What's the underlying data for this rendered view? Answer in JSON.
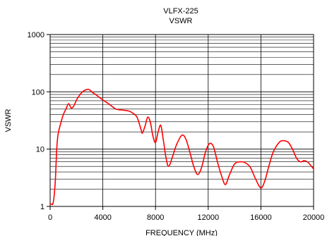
{
  "chart_data": {
    "type": "line",
    "title": "VLFX-225",
    "subtitle": "VSWR",
    "xlabel": "FREQUENCY (MHz)",
    "ylabel": "VSWR",
    "xlim": [
      0,
      20000
    ],
    "ylim": [
      1,
      1000
    ],
    "yscale": "log",
    "xticks": [
      0,
      4000,
      8000,
      12000,
      16000,
      20000
    ],
    "xtick_labels": [
      "0",
      "4000",
      "8000",
      "12000",
      "16000",
      "20000"
    ],
    "yticks": [
      1,
      10,
      100,
      1000
    ],
    "ytick_labels": [
      "1",
      "10",
      "100",
      "1000"
    ],
    "grid": true,
    "legend": "none",
    "series": [
      {
        "color": "#ff0000",
        "x": [
          0,
          100,
          200,
          300,
          400,
          500,
          600,
          800,
          1000,
          1200,
          1400,
          1600,
          1800,
          2000,
          2200,
          2500,
          2800,
          3000,
          3200,
          3500,
          3800,
          4000,
          4300,
          4600,
          5000,
          5500,
          6000,
          6300,
          6600,
          6900,
          7000,
          7200,
          7400,
          7600,
          7800,
          8000,
          8200,
          8400,
          8600,
          8800,
          9000,
          9300,
          9600,
          10000,
          10300,
          10600,
          10900,
          11200,
          11500,
          11800,
          12100,
          12400,
          12700,
          13000,
          13300,
          13600,
          14000,
          14400,
          14800,
          15200,
          15600,
          16000,
          16300,
          16600,
          16900,
          17200,
          17500,
          17800,
          18100,
          18400,
          18700,
          19000,
          19300,
          19600,
          20000
        ],
        "y": [
          1.1,
          1.1,
          1.1,
          1.5,
          3,
          10,
          18,
          28,
          40,
          50,
          62,
          52,
          57,
          72,
          85,
          102,
          110,
          108,
          98,
          88,
          78,
          72,
          65,
          58,
          50,
          48,
          46,
          42,
          36,
          22,
          19,
          25,
          36,
          30,
          17,
          13,
          20,
          26,
          14,
          7,
          5,
          7.5,
          12,
          17.5,
          15,
          9,
          5,
          3.6,
          4.8,
          9,
          12.5,
          11,
          6,
          3.5,
          2.4,
          3.5,
          5.5,
          6,
          5.8,
          4.8,
          3,
          2.1,
          2.8,
          5,
          8.5,
          11.5,
          13.8,
          14,
          13,
          10,
          7,
          6,
          6.3,
          5.8,
          4.5
        ]
      }
    ]
  }
}
